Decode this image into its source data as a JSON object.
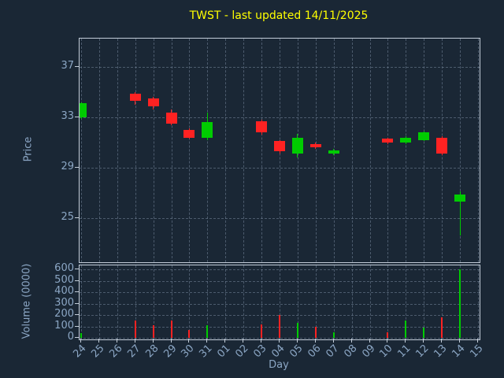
{
  "title": "TWST - last updated 14/11/2025",
  "colors": {
    "background": "#1a2735",
    "up": "#00cc00",
    "down": "#ff2222",
    "title": "#ffff00",
    "tick_label": "#8ba6c4",
    "axis_label": "#8ba6c4",
    "spine": "#c3cdd9",
    "grid": "#76879b"
  },
  "price_axis": {
    "label": "Price",
    "ticks": [
      37,
      33,
      29,
      25
    ]
  },
  "volume_axis": {
    "label": "Volume (0000)",
    "ticks": [
      600,
      500,
      400,
      300,
      200,
      100,
      0
    ]
  },
  "x_axis": {
    "label": "Day",
    "ticks": [
      "24",
      "25",
      "26",
      "27",
      "28",
      "29",
      "30",
      "31",
      "01",
      "02",
      "03",
      "04",
      "05",
      "06",
      "07",
      "08",
      "09",
      "10",
      "11",
      "12",
      "13",
      "14",
      "15"
    ]
  },
  "chart_data": [
    {
      "type": "candlestick",
      "title": "TWST - last updated 14/11/2025",
      "xlabel": "Day",
      "ylabel": "Price",
      "ylim": [
        21.5,
        39.25
      ],
      "x_ticks": [
        "24",
        "25",
        "26",
        "27",
        "28",
        "29",
        "30",
        "31",
        "01",
        "02",
        "03",
        "04",
        "05",
        "06",
        "07",
        "08",
        "09",
        "10",
        "11",
        "12",
        "13",
        "14",
        "15"
      ],
      "candles": [
        {
          "day": "24",
          "x_index": 0,
          "open": 33.0,
          "high": 34.2,
          "low": 32.9,
          "close": 34.1,
          "direction": "up"
        },
        {
          "day": "27",
          "x_index": 3,
          "open": 34.9,
          "high": 35.0,
          "low": 34.0,
          "close": 34.3,
          "direction": "down"
        },
        {
          "day": "28",
          "x_index": 4,
          "open": 34.5,
          "high": 34.6,
          "low": 33.6,
          "close": 33.9,
          "direction": "down"
        },
        {
          "day": "29",
          "x_index": 5,
          "open": 33.4,
          "high": 33.6,
          "low": 32.4,
          "close": 32.5,
          "direction": "down"
        },
        {
          "day": "30",
          "x_index": 6,
          "open": 32.0,
          "high": 32.1,
          "low": 31.3,
          "close": 31.4,
          "direction": "down"
        },
        {
          "day": "31",
          "x_index": 7,
          "open": 31.4,
          "high": 33.4,
          "low": 31.2,
          "close": 32.6,
          "direction": "up"
        },
        {
          "day": "03",
          "x_index": 10,
          "open": 32.7,
          "high": 32.8,
          "low": 31.6,
          "close": 31.8,
          "direction": "down"
        },
        {
          "day": "04",
          "x_index": 11,
          "open": 31.1,
          "high": 31.2,
          "low": 30.1,
          "close": 30.3,
          "direction": "down"
        },
        {
          "day": "05",
          "x_index": 12,
          "open": 30.1,
          "high": 31.7,
          "low": 29.8,
          "close": 31.4,
          "direction": "up"
        },
        {
          "day": "06",
          "x_index": 13,
          "open": 30.9,
          "high": 31.0,
          "low": 30.5,
          "close": 30.6,
          "direction": "down"
        },
        {
          "day": "07",
          "x_index": 14,
          "open": 30.1,
          "high": 30.5,
          "low": 30.0,
          "close": 30.4,
          "direction": "up"
        },
        {
          "day": "10",
          "x_index": 17,
          "open": 31.3,
          "high": 31.35,
          "low": 30.9,
          "close": 31.0,
          "direction": "down"
        },
        {
          "day": "11",
          "x_index": 18,
          "open": 31.0,
          "high": 31.5,
          "low": 30.9,
          "close": 31.4,
          "direction": "up"
        },
        {
          "day": "12",
          "x_index": 19,
          "open": 31.2,
          "high": 31.9,
          "low": 31.1,
          "close": 31.8,
          "direction": "up"
        },
        {
          "day": "13",
          "x_index": 20,
          "open": 31.4,
          "high": 31.5,
          "low": 30.0,
          "close": 30.1,
          "direction": "down"
        },
        {
          "day": "14",
          "x_index": 21,
          "open": 26.3,
          "high": 27.1,
          "low": 23.6,
          "close": 26.9,
          "direction": "up"
        }
      ]
    },
    {
      "type": "bar",
      "xlabel": "Day",
      "ylabel": "Volume (0000)",
      "ylim": [
        0,
        635
      ],
      "bars": [
        {
          "day": "24",
          "x_index": 0,
          "value": 40,
          "direction": "up"
        },
        {
          "day": "27",
          "x_index": 3,
          "value": 150,
          "direction": "down"
        },
        {
          "day": "28",
          "x_index": 4,
          "value": 110,
          "direction": "down"
        },
        {
          "day": "29",
          "x_index": 5,
          "value": 150,
          "direction": "down"
        },
        {
          "day": "30",
          "x_index": 6,
          "value": 70,
          "direction": "down"
        },
        {
          "day": "31",
          "x_index": 7,
          "value": 110,
          "direction": "up"
        },
        {
          "day": "03",
          "x_index": 10,
          "value": 120,
          "direction": "down"
        },
        {
          "day": "04",
          "x_index": 11,
          "value": 200,
          "direction": "down"
        },
        {
          "day": "05",
          "x_index": 12,
          "value": 130,
          "direction": "up"
        },
        {
          "day": "06",
          "x_index": 13,
          "value": 100,
          "direction": "down"
        },
        {
          "day": "07",
          "x_index": 14,
          "value": 50,
          "direction": "up"
        },
        {
          "day": "10",
          "x_index": 17,
          "value": 50,
          "direction": "down"
        },
        {
          "day": "11",
          "x_index": 18,
          "value": 150,
          "direction": "up"
        },
        {
          "day": "12",
          "x_index": 19,
          "value": 90,
          "direction": "up"
        },
        {
          "day": "13",
          "x_index": 20,
          "value": 180,
          "direction": "down"
        },
        {
          "day": "14",
          "x_index": 21,
          "value": 600,
          "direction": "up"
        }
      ]
    }
  ]
}
